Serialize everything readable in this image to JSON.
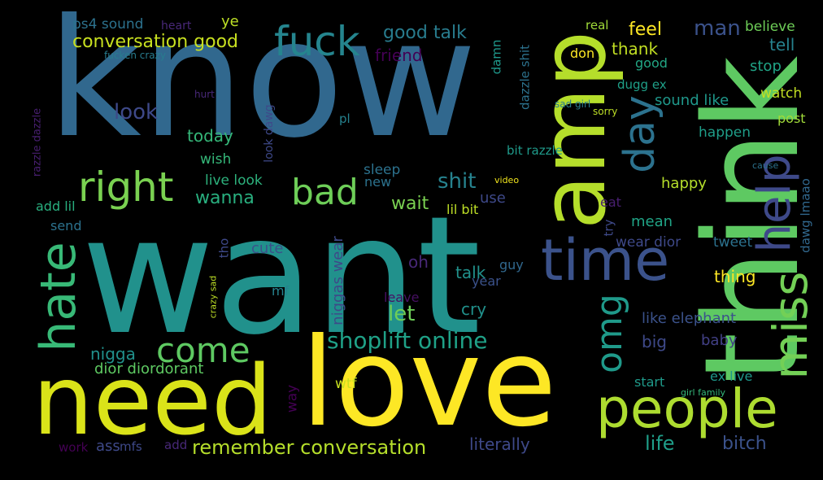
{
  "words": [
    {
      "text": "know",
      "color": "#31688e"
    },
    {
      "text": "want",
      "color": "#21918c"
    },
    {
      "text": "think",
      "color": "#5ec962"
    },
    {
      "text": "amp",
      "color": "#b5de2b"
    },
    {
      "text": "love",
      "color": "#fde725"
    },
    {
      "text": "need",
      "color": "#dae319"
    },
    {
      "text": "people",
      "color": "#addc30"
    },
    {
      "text": "time",
      "color": "#3b528b"
    },
    {
      "text": "fuck",
      "color": "#25858e"
    },
    {
      "text": "day",
      "color": "#2c728e"
    },
    {
      "text": "right",
      "color": "#7ad151"
    },
    {
      "text": "bad",
      "color": "#6ece58"
    },
    {
      "text": "hate",
      "color": "#38b977"
    },
    {
      "text": "help",
      "color": "#3e4989"
    },
    {
      "text": "miss",
      "color": "#73d056"
    },
    {
      "text": "omg",
      "color": "#1f9a8a"
    },
    {
      "text": "come",
      "color": "#5ec962"
    },
    {
      "text": "shoplift online",
      "color": "#1fa187"
    },
    {
      "text": "remember conversation",
      "color": "#b5de2b"
    },
    {
      "text": "conversation good",
      "color": "#c8e020"
    },
    {
      "text": "good talk",
      "color": "#287c8e"
    },
    {
      "text": "friend",
      "color": "#440154"
    },
    {
      "text": "ps4 sound",
      "color": "#2c728e"
    },
    {
      "text": "heart",
      "color": "#482878"
    },
    {
      "text": "ye",
      "color": "#bddf26"
    },
    {
      "text": "look",
      "color": "#3e4989"
    },
    {
      "text": "today",
      "color": "#35b779"
    },
    {
      "text": "wish",
      "color": "#35b779"
    },
    {
      "text": "live look",
      "color": "#2db27d"
    },
    {
      "text": "wanna",
      "color": "#29af7f"
    },
    {
      "text": "sleep",
      "color": "#2c728e"
    },
    {
      "text": "new",
      "color": "#2c728e"
    },
    {
      "text": "shit",
      "color": "#26828e"
    },
    {
      "text": "wait",
      "color": "#7ad151"
    },
    {
      "text": "use",
      "color": "#3e4989"
    },
    {
      "text": "lil bit",
      "color": "#bddf26"
    },
    {
      "text": "feel",
      "color": "#fde725"
    },
    {
      "text": "thank",
      "color": "#c2df23"
    },
    {
      "text": "man",
      "color": "#3b528b"
    },
    {
      "text": "believe",
      "color": "#6ece58"
    },
    {
      "text": "tell",
      "color": "#26828e"
    },
    {
      "text": "stop",
      "color": "#20a486"
    },
    {
      "text": "watch",
      "color": "#c2df23"
    },
    {
      "text": "post",
      "color": "#a0da39"
    },
    {
      "text": "happen",
      "color": "#1f9e89"
    },
    {
      "text": "sound like",
      "color": "#1f988b"
    },
    {
      "text": "dugg ex",
      "color": "#1fa088"
    },
    {
      "text": "good",
      "color": "#22a785"
    },
    {
      "text": "don",
      "color": "#fde725"
    },
    {
      "text": "real",
      "color": "#a0da39"
    },
    {
      "text": "damn",
      "color": "#1f988b"
    },
    {
      "text": "dazzle shit",
      "color": "#2c728e"
    },
    {
      "text": "bit razzle",
      "color": "#1f9a8a"
    },
    {
      "text": "happy",
      "color": "#b5de2b"
    },
    {
      "text": "eat",
      "color": "#481f70"
    },
    {
      "text": "mean",
      "color": "#20a486"
    },
    {
      "text": "try",
      "color": "#3e4989"
    },
    {
      "text": "wear dior",
      "color": "#3e4989"
    },
    {
      "text": "tweet",
      "color": "#2c728e"
    },
    {
      "text": "dawg lmaao",
      "color": "#31688e"
    },
    {
      "text": "cause",
      "color": "#2c728e"
    },
    {
      "text": "sad girl",
      "color": "#287c8e"
    },
    {
      "text": "sorry",
      "color": "#bddf26"
    },
    {
      "text": "video",
      "color": "#f1e51d"
    },
    {
      "text": "thing",
      "color": "#fde725"
    },
    {
      "text": "like elephant",
      "color": "#3b528b"
    },
    {
      "text": "big",
      "color": "#3e4989"
    },
    {
      "text": "baby",
      "color": "#424086"
    },
    {
      "text": "start",
      "color": "#1f9a8a"
    },
    {
      "text": "ex live",
      "color": "#1f988b"
    },
    {
      "text": "girl family",
      "color": "#34b679"
    },
    {
      "text": "life",
      "color": "#1f9e89"
    },
    {
      "text": "bitch",
      "color": "#3b528b"
    },
    {
      "text": "literally",
      "color": "#3e4989"
    },
    {
      "text": "talk",
      "color": "#21918c"
    },
    {
      "text": "year",
      "color": "#3b528b"
    },
    {
      "text": "cry",
      "color": "#21918c"
    },
    {
      "text": "let",
      "color": "#6ece58"
    },
    {
      "text": "oh",
      "color": "#482878"
    },
    {
      "text": "leave",
      "color": "#471063"
    },
    {
      "text": "guy",
      "color": "#31688e"
    },
    {
      "text": "way",
      "color": "#440154"
    },
    {
      "text": "wtf",
      "color": "#c8e020"
    },
    {
      "text": "niggas wear",
      "color": "#3e4989"
    },
    {
      "text": "cute",
      "color": "#3b528b"
    },
    {
      "text": "mf",
      "color": "#26828e"
    },
    {
      "text": "tho",
      "color": "#3e4989"
    },
    {
      "text": "crazy sad",
      "color": "#bddf26"
    },
    {
      "text": "nigga",
      "color": "#21918c"
    },
    {
      "text": "dior diordorant",
      "color": "#5ec962"
    },
    {
      "text": "ass",
      "color": "#3e4989"
    },
    {
      "text": "mfs",
      "color": "#3e4989"
    },
    {
      "text": "add",
      "color": "#482878"
    },
    {
      "text": "work",
      "color": "#440154"
    },
    {
      "text": "add lil",
      "color": "#29af7f"
    },
    {
      "text": "send",
      "color": "#2c728e"
    },
    {
      "text": "razzle dazzle",
      "color": "#481f70"
    },
    {
      "text": "fucken crazy",
      "color": "#287c8e"
    },
    {
      "text": "hurt",
      "color": "#482878"
    },
    {
      "text": "pl",
      "color": "#26828e"
    },
    {
      "text": "look dawg",
      "color": "#3e4989"
    }
  ]
}
